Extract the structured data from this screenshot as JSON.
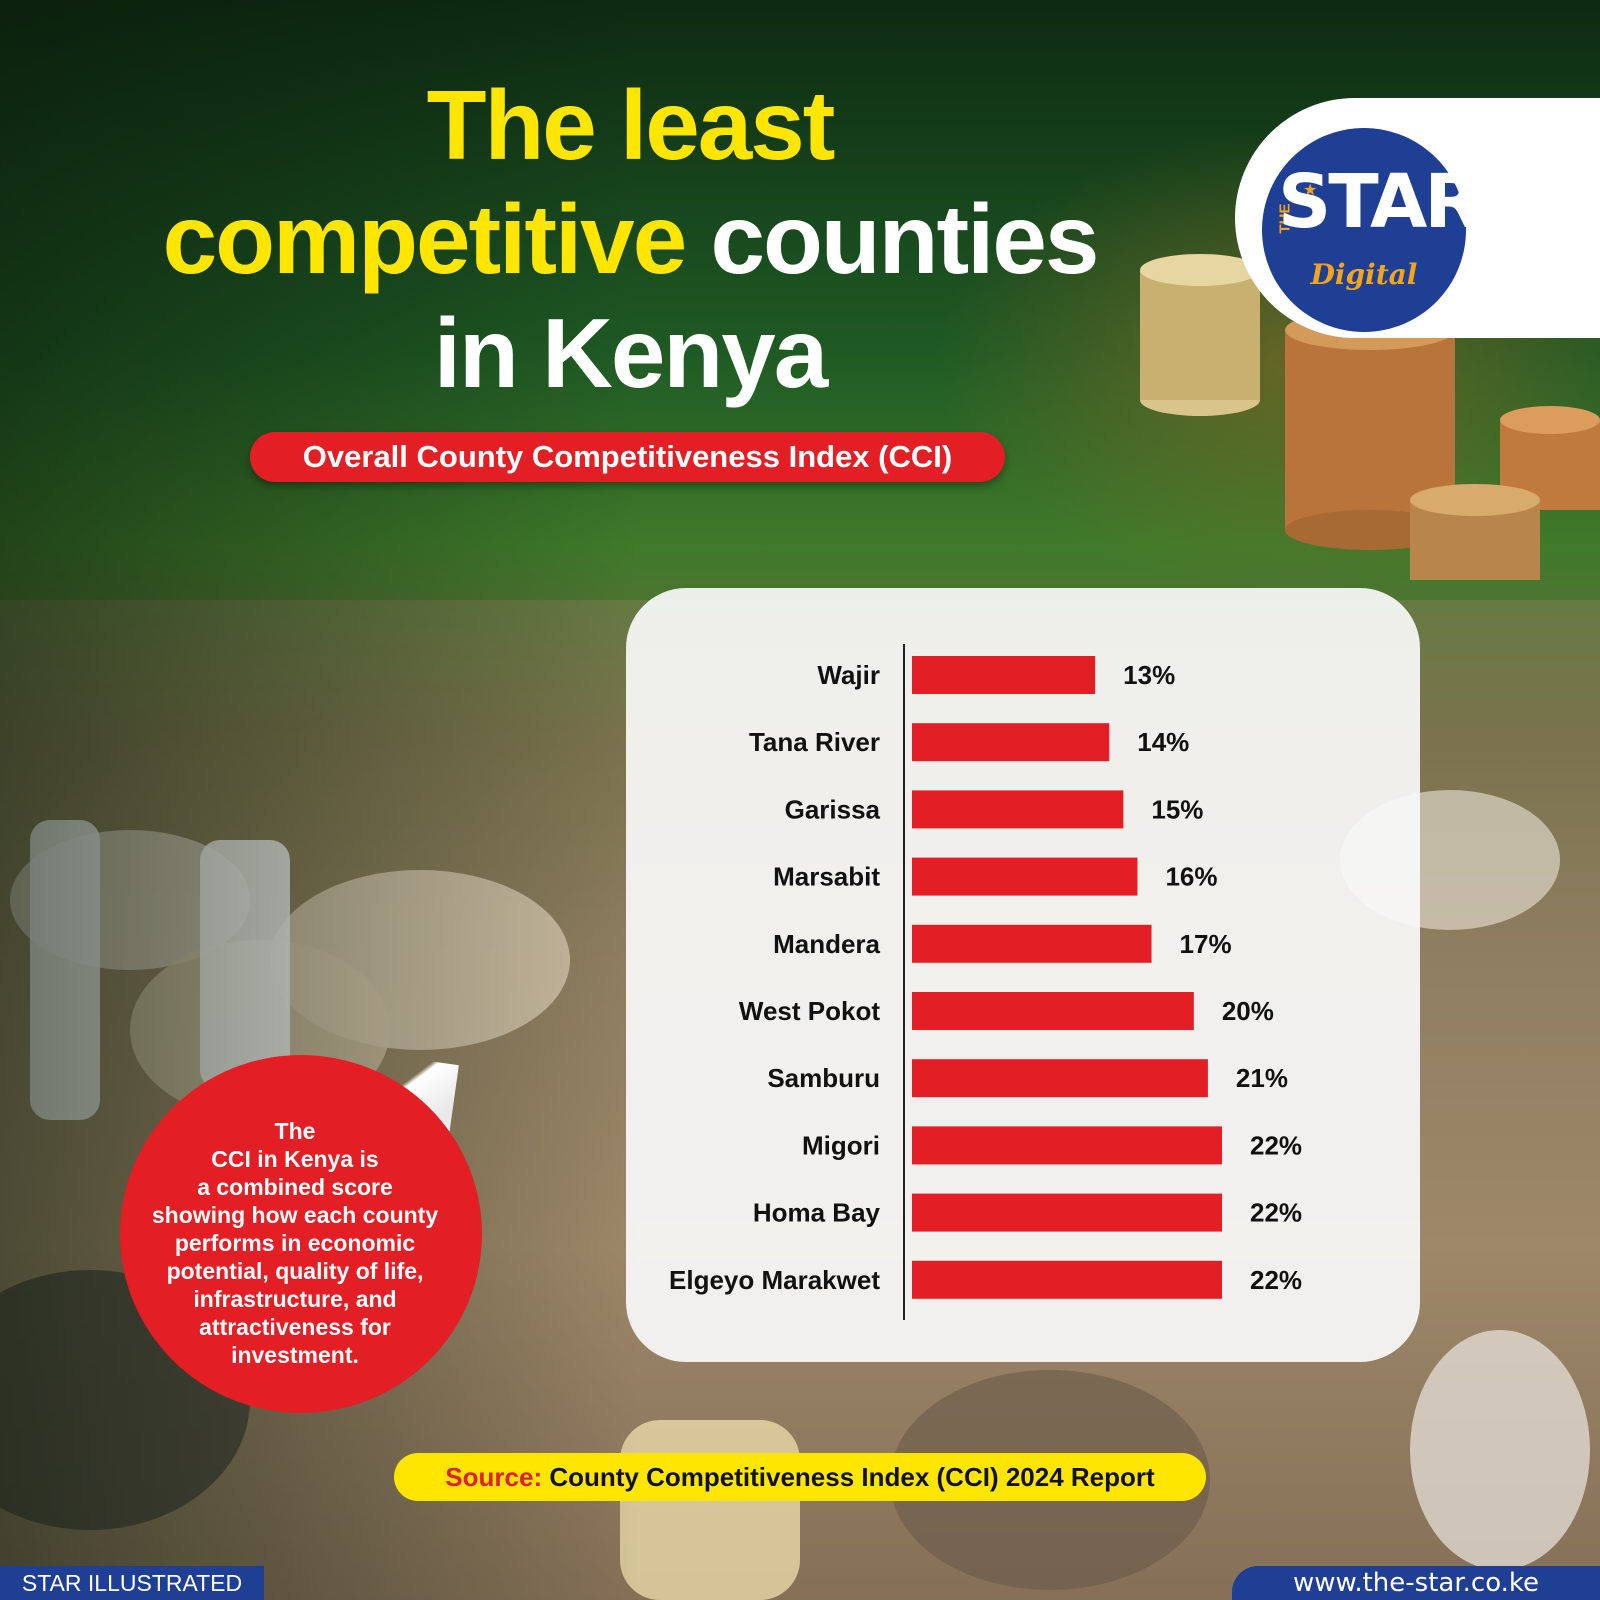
{
  "title": {
    "line1": "The least",
    "line2_highlight": "competitive",
    "line2_rest": "counties",
    "line3": "in Kenya"
  },
  "subtitle": "Overall County Competitiveness Index (CCI)",
  "logo": {
    "the": "THE",
    "star": "STAR",
    "digital": "Digital"
  },
  "note": {
    "lines": [
      "The",
      "CCI in Kenya is",
      "a combined score",
      "showing how each county",
      "performs in economic",
      "potential, quality of life,",
      "infrastructure, and",
      "attractiveness for",
      "investment."
    ]
  },
  "source": {
    "label": "Source:",
    "text": "County Competitiveness Index (CCI) 2024 Report"
  },
  "footer": {
    "left": "STAR ILLUSTRATED",
    "right": "www.the-star.co.ke"
  },
  "colors": {
    "bar": "#e31e24",
    "title_yellow": "#ffe600",
    "brand_blue": "#1f3f94"
  },
  "chart_data": {
    "type": "bar",
    "orientation": "horizontal",
    "title": "Overall County Competitiveness Index (CCI)",
    "categories": [
      "Wajir",
      "Tana River",
      "Garissa",
      "Marsabit",
      "Mandera",
      "West Pokot",
      "Samburu",
      "Migori",
      "Homa Bay",
      "Elgeyo Marakwet"
    ],
    "values": [
      13,
      14,
      15,
      16,
      17,
      20,
      21,
      22,
      22,
      22
    ],
    "value_labels": [
      "13%",
      "14%",
      "15%",
      "16%",
      "17%",
      "20%",
      "21%",
      "22%",
      "22%",
      "22%"
    ],
    "unit": "%",
    "xlim": [
      0,
      22
    ],
    "grid": false,
    "legend": "none"
  }
}
